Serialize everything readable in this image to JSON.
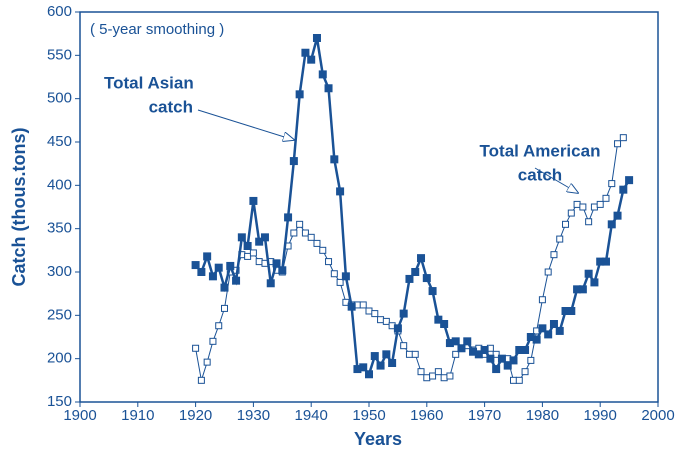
{
  "chart_data": {
    "type": "line",
    "xlabel": "Years",
    "ylabel": "Catch (thous.tons)",
    "annotations": [
      {
        "lines": [
          "( 5-year smoothing )"
        ]
      },
      {
        "lines": [
          "Total Asian",
          "catch"
        ]
      },
      {
        "lines": [
          "Total American",
          "catch"
        ]
      }
    ],
    "xlim": [
      1900,
      2000
    ],
    "xticks": [
      1900,
      1910,
      1920,
      1930,
      1940,
      1950,
      1960,
      1970,
      1980,
      1990,
      2000
    ],
    "ylim": [
      150,
      600
    ],
    "yticks": [
      150,
      200,
      250,
      300,
      350,
      400,
      450,
      500,
      550,
      600
    ],
    "series": [
      {
        "name": "Total Asian catch",
        "color": "#1a5296",
        "marker": "filled-square",
        "x": [
          1920,
          1921,
          1922,
          1923,
          1924,
          1925,
          1926,
          1927,
          1928,
          1929,
          1930,
          1931,
          1932,
          1933,
          1934,
          1935,
          1936,
          1937,
          1938,
          1939,
          1940,
          1941,
          1942,
          1943,
          1944,
          1945,
          1946,
          1947,
          1948,
          1949,
          1950,
          1951,
          1952,
          1953,
          1954,
          1955,
          1956,
          1957,
          1958,
          1959,
          1960,
          1961,
          1962,
          1963,
          1964,
          1965,
          1966,
          1967,
          1968,
          1969,
          1970,
          1971,
          1972,
          1973,
          1974,
          1975,
          1976,
          1977,
          1978,
          1979,
          1980,
          1981,
          1982,
          1983,
          1984,
          1985,
          1986,
          1987,
          1988,
          1989,
          1990,
          1991,
          1992,
          1993,
          1994,
          1995
        ],
        "values": [
          308,
          300,
          318,
          295,
          305,
          282,
          307,
          290,
          340,
          330,
          382,
          335,
          340,
          287,
          310,
          302,
          363,
          428,
          505,
          553,
          545,
          570,
          528,
          512,
          430,
          393,
          295,
          260,
          188,
          190,
          182,
          203,
          192,
          205,
          195,
          235,
          252,
          292,
          300,
          316,
          293,
          278,
          245,
          240,
          218,
          220,
          212,
          220,
          208,
          205,
          210,
          200,
          188,
          200,
          192,
          198,
          210,
          210,
          225,
          222,
          235,
          228,
          240,
          232,
          255,
          255,
          280,
          280,
          298,
          288,
          312,
          312,
          355,
          365,
          395,
          406
        ]
      },
      {
        "name": "Total American catch",
        "color": "#1a5296",
        "marker": "open-square",
        "x": [
          1920,
          1921,
          1922,
          1923,
          1924,
          1925,
          1926,
          1927,
          1928,
          1929,
          1930,
          1931,
          1932,
          1933,
          1934,
          1935,
          1936,
          1937,
          1938,
          1939,
          1940,
          1941,
          1942,
          1943,
          1944,
          1945,
          1946,
          1947,
          1948,
          1949,
          1950,
          1951,
          1952,
          1953,
          1954,
          1955,
          1956,
          1957,
          1958,
          1959,
          1960,
          1961,
          1962,
          1963,
          1964,
          1965,
          1966,
          1967,
          1968,
          1969,
          1970,
          1971,
          1972,
          1973,
          1974,
          1975,
          1976,
          1977,
          1978,
          1979,
          1980,
          1981,
          1982,
          1983,
          1984,
          1985,
          1986,
          1987,
          1988,
          1989,
          1990,
          1991,
          1992,
          1993,
          1994
        ],
        "values": [
          212,
          175,
          196,
          220,
          238,
          258,
          300,
          302,
          320,
          318,
          322,
          312,
          310,
          312,
          302,
          300,
          330,
          345,
          355,
          345,
          340,
          333,
          325,
          312,
          298,
          288,
          265,
          262,
          262,
          262,
          255,
          252,
          245,
          243,
          238,
          232,
          215,
          205,
          205,
          185,
          178,
          180,
          185,
          178,
          180,
          205,
          212,
          215,
          210,
          212,
          205,
          212,
          205,
          200,
          200,
          175,
          175,
          185,
          198,
          232,
          268,
          300,
          320,
          338,
          355,
          368,
          378,
          375,
          358,
          375,
          378,
          385,
          402,
          448,
          455
        ]
      }
    ]
  }
}
